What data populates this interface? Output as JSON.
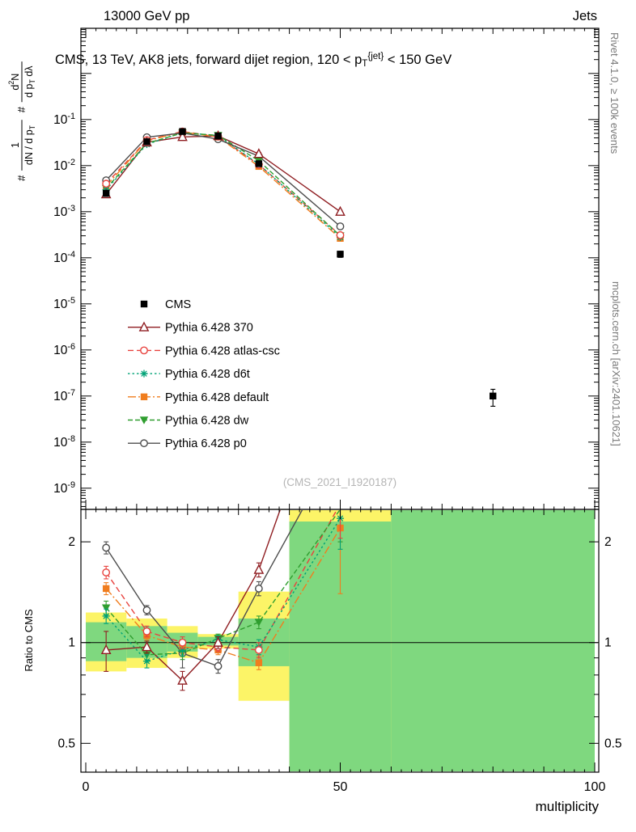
{
  "header": {
    "left": "13000 GeV pp",
    "right": "Jets"
  },
  "plot_title": "CMS, 13 TeV, AK8 jets, forward dijet region, 120 < p_[T]^[{jet}] < 150 GeV",
  "watermark": "(CMS_2021_I1920187)",
  "side_notes": {
    "rivet": "Rivet 4.1.0, ≥ 100k events",
    "mcplots": "mcplots.cern.ch [arXiv:2401.10621]"
  },
  "chart_data": {
    "type": "line",
    "x_axis": {
      "label": "multiplicity",
      "range": [
        0,
        100
      ],
      "major_ticks": [
        0,
        50,
        100
      ],
      "major_tick_labels": [
        "0",
        "50",
        "100"
      ],
      "medium_step": 10,
      "minor_step": 2
    },
    "main_axis": {
      "scale": "log",
      "tick_exponents": [
        -1,
        -2,
        -3,
        -4,
        -5,
        -6,
        -7,
        -8,
        -9
      ],
      "tick_labels": [
        "10^[-1]",
        "10^[-2]",
        "10^[-3]",
        "10^[-4]",
        "10^[-5]",
        "10^[-6]",
        "10^[-7]",
        "10^[-8]",
        "10^[-9]"
      ]
    },
    "y_label": {
      "fractions": [
        {
          "prefix": "#",
          "num": "1",
          "den": "dN / d p_[T]"
        },
        {
          "prefix": "#",
          "num": "d^[2]N",
          "den": "d p_[T] dλ"
        }
      ]
    },
    "ratio_axis": {
      "label": "Ratio to CMS",
      "tick_values": [
        0.5,
        1,
        2
      ],
      "tick_labels": [
        "0.5",
        "1",
        "2"
      ],
      "minor_ticks": [
        0.6,
        0.7,
        0.8,
        0.9
      ],
      "range": [
        0.41,
        2.5
      ]
    },
    "bands": {
      "yellow_color": "#fcf467",
      "green_color": "#7fd87f",
      "bins": [
        {
          "x": [
            0,
            8
          ],
          "yellow": [
            0.82,
            1.23
          ],
          "green": [
            0.88,
            1.15
          ]
        },
        {
          "x": [
            8,
            16
          ],
          "yellow": [
            0.84,
            1.18
          ],
          "green": [
            0.9,
            1.12
          ]
        },
        {
          "x": [
            16,
            22
          ],
          "yellow": [
            0.9,
            1.12
          ],
          "green": [
            0.94,
            1.07
          ]
        },
        {
          "x": [
            22,
            30
          ],
          "yellow": [
            0.96,
            1.06
          ],
          "green": [
            0.98,
            1.04
          ]
        },
        {
          "x": [
            30,
            40
          ],
          "yellow": [
            0.67,
            1.42
          ],
          "green": [
            0.85,
            1.18
          ]
        },
        {
          "x": [
            40,
            60
          ],
          "yellow": [
            0.38,
            2.62
          ],
          "green": [
            0.38,
            2.3
          ]
        },
        {
          "x": [
            60,
            100
          ],
          "yellow": [
            0.38,
            2.62
          ],
          "green": [
            0.38,
            2.62
          ]
        }
      ]
    },
    "series": [
      {
        "name": "CMS",
        "color": "#000000",
        "marker": "square-filled",
        "line": "none",
        "dash": "",
        "x": [
          4,
          12,
          19,
          26,
          34,
          50,
          80
        ],
        "y": [
          0.0025,
          0.033,
          0.055,
          0.044,
          0.011,
          0.00012,
          1e-07
        ],
        "yerr": [
          0.00035,
          0.002,
          0.002,
          0.0018,
          0.0009,
          1.8e-05,
          4e-08
        ]
      },
      {
        "name": "Pythia 6.428 370",
        "color": "#8f1d21",
        "marker": "triangle-up-open",
        "line": "solid",
        "dash": "",
        "x": [
          4,
          12,
          19,
          26,
          34,
          50
        ],
        "y": [
          0.0024,
          0.032,
          0.042,
          0.044,
          0.018,
          0.001
        ],
        "ratio": [
          0.95,
          0.97,
          0.77,
          1.0,
          1.65,
          8.0
        ],
        "ratio_err": [
          0.13,
          0.04,
          0.05,
          0.04,
          0.08,
          1.5
        ]
      },
      {
        "name": "Pythia 6.428 atlas-csc",
        "color": "#e8433f",
        "marker": "circle-open",
        "line": "dashed",
        "dash": "7,4",
        "x": [
          4,
          12,
          19,
          26,
          34,
          50
        ],
        "y": [
          0.00405,
          0.0356,
          0.055,
          0.0427,
          0.0105,
          0.00031
        ],
        "ratio": [
          1.62,
          1.08,
          1.0,
          0.97,
          0.95,
          2.6
        ],
        "ratio_err": [
          0.07,
          0.04,
          0.04,
          0.03,
          0.05,
          0.55
        ]
      },
      {
        "name": "Pythia 6.428 d6t",
        "color": "#00a276",
        "marker": "star",
        "line": "dashed",
        "dash": "2.5,3",
        "x": [
          4,
          12,
          19,
          26,
          34,
          50
        ],
        "y": [
          0.003,
          0.029,
          0.052,
          0.0449,
          0.0107,
          0.00028
        ],
        "ratio": [
          1.2,
          0.88,
          0.95,
          1.02,
          0.97,
          2.35
        ],
        "ratio_err": [
          0.06,
          0.04,
          0.04,
          0.03,
          0.05,
          0.45
        ]
      },
      {
        "name": "Pythia 6.428 default",
        "color": "#f07d1e",
        "marker": "square-filled",
        "line": "dashdot",
        "dash": "10,3,2,3",
        "x": [
          4,
          12,
          19,
          26,
          34,
          50
        ],
        "y": [
          0.0036,
          0.0347,
          0.0534,
          0.0418,
          0.0096,
          0.000264
        ],
        "ratio": [
          1.45,
          1.05,
          0.97,
          0.95,
          0.87,
          2.2
        ],
        "ratio_err": [
          0.06,
          0.03,
          0.04,
          0.03,
          0.04,
          0.8
        ]
      },
      {
        "name": "Pythia 6.428 dw",
        "color": "#2f9e2f",
        "marker": "triangle-down-filled",
        "line": "dashed",
        "dash": "6,3",
        "x": [
          4,
          12,
          19,
          26,
          34,
          50
        ],
        "y": [
          0.0032,
          0.0304,
          0.0512,
          0.0453,
          0.0127,
          0.0003
        ],
        "ratio": [
          1.27,
          0.92,
          0.93,
          1.03,
          1.15,
          2.5
        ],
        "ratio_err": [
          0.06,
          0.04,
          0.04,
          0.03,
          0.05,
          0.5
        ]
      },
      {
        "name": "Pythia 6.428 p0",
        "color": "#4d4d4d",
        "marker": "circle-open",
        "line": "solid",
        "dash": "",
        "x": [
          4,
          12,
          19,
          26,
          34,
          50
        ],
        "y": [
          0.0048,
          0.0413,
          0.0512,
          0.0374,
          0.016,
          0.00048
        ],
        "ratio": [
          1.92,
          1.25,
          0.93,
          0.85,
          1.45,
          4.0
        ],
        "ratio_err": [
          0.08,
          0.04,
          0.09,
          0.04,
          0.07,
          1.0
        ]
      }
    ]
  }
}
